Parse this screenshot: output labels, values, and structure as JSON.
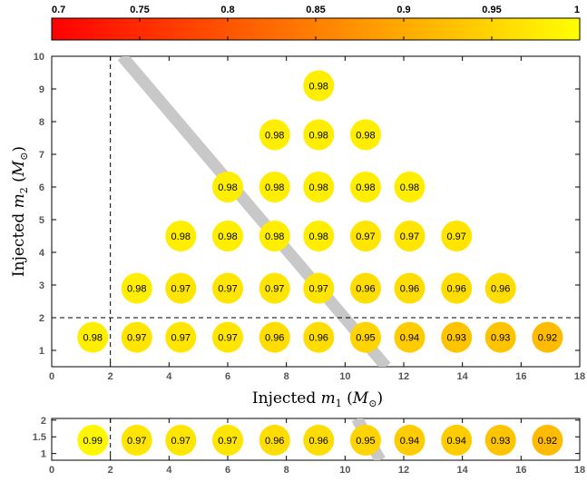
{
  "chart_data": [
    {
      "type": "scatter",
      "title": "",
      "xlabel": "Injected m_1 (M_⊙)",
      "ylabel": "Injected m_2 (M_⊙)",
      "xlim": [
        0,
        18
      ],
      "ylim": [
        0.5,
        10
      ],
      "xticks": [
        "0",
        "2",
        "4",
        "6",
        "8",
        "10",
        "12",
        "14",
        "16",
        "18"
      ],
      "yticks": [
        "1",
        "2",
        "3",
        "4",
        "5",
        "6",
        "7",
        "8",
        "9",
        "10"
      ],
      "reference_lines": {
        "x": 2,
        "y": 2,
        "diagonal_from": [
          2.4,
          10
        ],
        "diagonal_to": [
          11.4,
          0.5
        ]
      },
      "points": [
        {
          "x": 1.4,
          "y": 1.4,
          "value": 0.98
        },
        {
          "x": 2.9,
          "y": 1.4,
          "value": 0.97
        },
        {
          "x": 4.4,
          "y": 1.4,
          "value": 0.97
        },
        {
          "x": 6.0,
          "y": 1.4,
          "value": 0.97
        },
        {
          "x": 7.6,
          "y": 1.4,
          "value": 0.96
        },
        {
          "x": 9.1,
          "y": 1.4,
          "value": 0.96
        },
        {
          "x": 10.7,
          "y": 1.4,
          "value": 0.95
        },
        {
          "x": 12.2,
          "y": 1.4,
          "value": 0.94
        },
        {
          "x": 13.8,
          "y": 1.4,
          "value": 0.93
        },
        {
          "x": 15.3,
          "y": 1.4,
          "value": 0.93
        },
        {
          "x": 16.9,
          "y": 1.4,
          "value": 0.92
        },
        {
          "x": 2.9,
          "y": 2.9,
          "value": 0.98
        },
        {
          "x": 4.4,
          "y": 2.9,
          "value": 0.97
        },
        {
          "x": 6.0,
          "y": 2.9,
          "value": 0.97
        },
        {
          "x": 7.6,
          "y": 2.9,
          "value": 0.97
        },
        {
          "x": 9.1,
          "y": 2.9,
          "value": 0.97
        },
        {
          "x": 10.7,
          "y": 2.9,
          "value": 0.96
        },
        {
          "x": 12.2,
          "y": 2.9,
          "value": 0.96
        },
        {
          "x": 13.8,
          "y": 2.9,
          "value": 0.96
        },
        {
          "x": 15.3,
          "y": 2.9,
          "value": 0.96
        },
        {
          "x": 4.4,
          "y": 4.5,
          "value": 0.98
        },
        {
          "x": 6.0,
          "y": 4.5,
          "value": 0.98
        },
        {
          "x": 7.6,
          "y": 4.5,
          "value": 0.98
        },
        {
          "x": 9.1,
          "y": 4.5,
          "value": 0.98
        },
        {
          "x": 10.7,
          "y": 4.5,
          "value": 0.97
        },
        {
          "x": 12.2,
          "y": 4.5,
          "value": 0.97
        },
        {
          "x": 13.8,
          "y": 4.5,
          "value": 0.97
        },
        {
          "x": 6.0,
          "y": 6.0,
          "value": 0.98
        },
        {
          "x": 7.6,
          "y": 6.0,
          "value": 0.98
        },
        {
          "x": 9.1,
          "y": 6.0,
          "value": 0.98
        },
        {
          "x": 10.7,
          "y": 6.0,
          "value": 0.98
        },
        {
          "x": 12.2,
          "y": 6.0,
          "value": 0.98
        },
        {
          "x": 7.6,
          "y": 7.6,
          "value": 0.98
        },
        {
          "x": 9.1,
          "y": 7.6,
          "value": 0.98
        },
        {
          "x": 10.7,
          "y": 7.6,
          "value": 0.98
        },
        {
          "x": 9.1,
          "y": 9.1,
          "value": 0.98
        }
      ]
    },
    {
      "type": "scatter",
      "title": "",
      "xlabel": "",
      "ylabel": "",
      "xlim": [
        0,
        18
      ],
      "ylim": [
        0.8,
        2.05
      ],
      "xticks": [
        "0",
        "2",
        "4",
        "6",
        "8",
        "10",
        "12",
        "14",
        "16",
        "18"
      ],
      "yticks": [
        "1",
        "1.5",
        "2"
      ],
      "reference_lines": {
        "x": 2,
        "diagonal_from": [
          10.4,
          2.05
        ],
        "diagonal_to": [
          11.2,
          0.8
        ]
      },
      "points": [
        {
          "x": 1.4,
          "y": 1.4,
          "value": 0.99
        },
        {
          "x": 2.9,
          "y": 1.4,
          "value": 0.97
        },
        {
          "x": 4.4,
          "y": 1.4,
          "value": 0.97
        },
        {
          "x": 6.0,
          "y": 1.4,
          "value": 0.97
        },
        {
          "x": 7.6,
          "y": 1.4,
          "value": 0.96
        },
        {
          "x": 9.1,
          "y": 1.4,
          "value": 0.96
        },
        {
          "x": 10.7,
          "y": 1.4,
          "value": 0.95
        },
        {
          "x": 12.2,
          "y": 1.4,
          "value": 0.94
        },
        {
          "x": 13.8,
          "y": 1.4,
          "value": 0.94
        },
        {
          "x": 15.3,
          "y": 1.4,
          "value": 0.93
        },
        {
          "x": 16.9,
          "y": 1.4,
          "value": 0.92
        }
      ]
    }
  ],
  "colorbar": {
    "ticks": [
      "0.7",
      "0.75",
      "0.8",
      "0.85",
      "0.9",
      "0.95",
      "1"
    ],
    "range": [
      0.7,
      1.0
    ],
    "colormap": "autumn",
    "low_color": "#ff0000",
    "high_color": "#ffff00"
  }
}
